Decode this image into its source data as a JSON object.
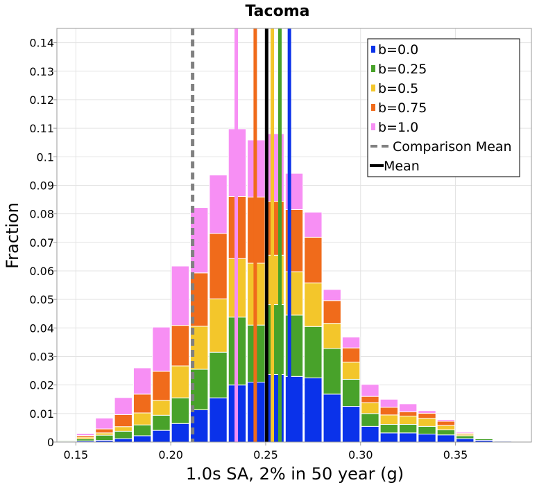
{
  "chart_data": {
    "type": "bar",
    "stacked": true,
    "title": "Tacoma",
    "xlabel": "1.0s SA, 2% in 50 year (g)",
    "ylabel": "Fraction",
    "xlim": [
      0.14,
      0.39
    ],
    "ylim": [
      0,
      0.145
    ],
    "grid": true,
    "legend_position": "top-right",
    "bin_width": 0.01,
    "x_ticks": [
      0.15,
      0.2,
      0.25,
      0.3,
      0.35
    ],
    "x_tick_labels": [
      "0.15",
      "0.20",
      "0.25",
      "0.30",
      "0.35"
    ],
    "y_ticks": [
      0,
      0.01,
      0.02,
      0.03,
      0.04,
      0.05,
      0.06,
      0.07,
      0.08,
      0.09,
      0.1,
      0.11,
      0.12,
      0.13,
      0.14
    ],
    "y_tick_labels": [
      "0",
      "0.01",
      "0.02",
      "0.03",
      "0.04",
      "0.05",
      "0.06",
      "0.07",
      "0.08",
      "0.09",
      "0.1",
      "0.11",
      "0.12",
      "0.13",
      "0.14"
    ],
    "bin_centers": [
      0.145,
      0.155,
      0.165,
      0.175,
      0.185,
      0.195,
      0.205,
      0.215,
      0.225,
      0.235,
      0.245,
      0.255,
      0.265,
      0.275,
      0.285,
      0.295,
      0.305,
      0.315,
      0.325,
      0.335,
      0.345,
      0.355,
      0.365,
      0.375,
      0.385
    ],
    "series": [
      {
        "name": "b=0.0",
        "color": "#0a32ea",
        "values": [
          0.0002,
          0.0004,
          0.0006,
          0.0012,
          0.0022,
          0.0041,
          0.0065,
          0.0113,
          0.0155,
          0.02,
          0.021,
          0.0237,
          0.023,
          0.0225,
          0.0168,
          0.0125,
          0.0055,
          0.0032,
          0.0032,
          0.0028,
          0.0025,
          0.0012,
          0.0006,
          0.0003,
          0.0001
        ]
      },
      {
        "name": "b=0.25",
        "color": "#48a22a",
        "values": [
          0.0003,
          0.0007,
          0.0018,
          0.0026,
          0.0038,
          0.0053,
          0.009,
          0.0142,
          0.016,
          0.0238,
          0.02,
          0.0245,
          0.0215,
          0.018,
          0.016,
          0.0095,
          0.0045,
          0.003,
          0.003,
          0.0027,
          0.0018,
          0.001,
          0.0005,
          0.0002,
          0.0001
        ]
      },
      {
        "name": "b=0.5",
        "color": "#f3c62b",
        "values": [
          0.0001,
          0.0006,
          0.0008,
          0.0016,
          0.0042,
          0.0052,
          0.0112,
          0.0151,
          0.0187,
          0.0205,
          0.0217,
          0.0173,
          0.0152,
          0.0153,
          0.0088,
          0.006,
          0.0038,
          0.0033,
          0.0029,
          0.0028,
          0.0015,
          0.0005,
          0.0002,
          0.0001,
          0.0
        ]
      },
      {
        "name": "b=0.75",
        "color": "#f06b1b",
        "values": [
          0.0002,
          0.0006,
          0.0014,
          0.0042,
          0.0066,
          0.0102,
          0.0142,
          0.0187,
          0.0229,
          0.0218,
          0.0232,
          0.0189,
          0.0218,
          0.016,
          0.008,
          0.005,
          0.0022,
          0.0027,
          0.0015,
          0.0018,
          0.0015,
          0.0004,
          0.0002,
          0.0001,
          0.0001
        ]
      },
      {
        "name": "b=1.0",
        "color": "#f78ff4",
        "values": [
          0.0002,
          0.0007,
          0.0038,
          0.006,
          0.0092,
          0.0155,
          0.0208,
          0.0229,
          0.0205,
          0.0237,
          0.02,
          0.0237,
          0.0127,
          0.0088,
          0.0039,
          0.0038,
          0.0042,
          0.0028,
          0.0028,
          0.0009,
          0.0006,
          0.0004,
          0.0002,
          0.0001,
          0.0001
        ]
      }
    ],
    "mean_lines": [
      {
        "name": "b=0.0",
        "x": 0.2625,
        "color": "#0a32ea"
      },
      {
        "name": "b=0.25",
        "x": 0.2575,
        "color": "#48a22a"
      },
      {
        "name": "b=0.5",
        "x": 0.2535,
        "color": "#f3c62b"
      },
      {
        "name": "b=0.75",
        "x": 0.2445,
        "color": "#f06b1b"
      },
      {
        "name": "b=1.0",
        "x": 0.2345,
        "color": "#f78ff4"
      }
    ],
    "comparison_mean": {
      "name": "Comparison Mean",
      "x": 0.2115,
      "color": "#808080",
      "style": "dashed"
    },
    "mean": {
      "name": "Mean",
      "x": 0.2505,
      "color": "#000000"
    },
    "legend": [
      {
        "label": "b=0.0",
        "kind": "box",
        "color": "#0a32ea"
      },
      {
        "label": "b=0.25",
        "kind": "box",
        "color": "#48a22a"
      },
      {
        "label": "b=0.5",
        "kind": "box",
        "color": "#f3c62b"
      },
      {
        "label": "b=0.75",
        "kind": "box",
        "color": "#f06b1b"
      },
      {
        "label": "b=1.0",
        "kind": "box",
        "color": "#f78ff4"
      },
      {
        "label": "Comparison Mean",
        "kind": "dashed",
        "color": "#808080"
      },
      {
        "label": "Mean",
        "kind": "line",
        "color": "#000000"
      }
    ]
  }
}
